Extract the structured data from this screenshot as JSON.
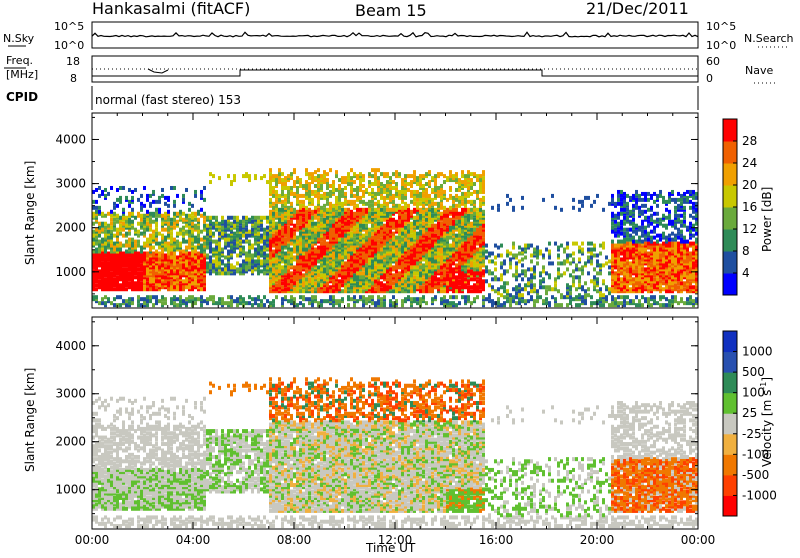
{
  "header": {
    "station": "Hankasalmi (fitACF)",
    "beam": "Beam 15",
    "date": "21/Dec/2011"
  },
  "side_labels": {
    "n_sky": "N.Sky",
    "n_search": "N.Search",
    "freq_line1": "Freq.",
    "freq_line2": "[MHz]",
    "nave": "Nave",
    "cpid": "CPID"
  },
  "noise_panel": {
    "left_ticks": [
      "10^5",
      "10^0"
    ],
    "right_ticks": [
      "10^5",
      "10^0"
    ]
  },
  "freq_panel": {
    "left_ticks": [
      "18",
      "8"
    ],
    "right_ticks": [
      "60",
      "0"
    ]
  },
  "cpid_text": "normal (fast stereo) 153",
  "colors": {
    "power_scale": [
      "#0000ff",
      "#1f4fa0",
      "#2e8b57",
      "#6aaa3c",
      "#c8c800",
      "#f0a000",
      "#f06000",
      "#ff0000"
    ],
    "velocity_scale": [
      "#ff0000",
      "#ff4000",
      "#f07800",
      "#f0b040",
      "#c8c8c0",
      "#60c030",
      "#2e8b57",
      "#2850b0",
      "#1030c0"
    ]
  },
  "chart_data": [
    {
      "type": "heatmap",
      "ylabel": "Slant Range [km]",
      "x_tick_labels": [
        "00:00",
        "04:00",
        "08:00",
        "12:00",
        "16:00",
        "20:00",
        "00:00"
      ],
      "y_tick_labels": [
        "1000",
        "2000",
        "3000",
        "4000"
      ],
      "xlim_hours": [
        0,
        24
      ],
      "ylim_km": [
        180,
        4600
      ],
      "colorbar": {
        "label": "Power [dB]",
        "ticks": [
          "28",
          "24",
          "20",
          "16",
          "12",
          "8",
          "4"
        ],
        "range": [
          0,
          32
        ]
      }
    },
    {
      "type": "heatmap",
      "ylabel": "Slant Range [km]",
      "xlabel": "Time UT",
      "x_tick_labels": [
        "00:00",
        "04:00",
        "08:00",
        "12:00",
        "16:00",
        "20:00",
        "00:00"
      ],
      "y_tick_labels": [
        "1000",
        "2000",
        "3000",
        "4000"
      ],
      "xlim_hours": [
        0,
        24
      ],
      "ylim_km": [
        180,
        4600
      ],
      "colorbar": {
        "label": "Velocity",
        "label_unit": "[m s",
        "label_sup": "-1",
        "label_close": "]",
        "ticks": [
          "1000",
          "500",
          "100",
          "25",
          "-25",
          "-100",
          "-500",
          "-1000"
        ]
      }
    }
  ]
}
